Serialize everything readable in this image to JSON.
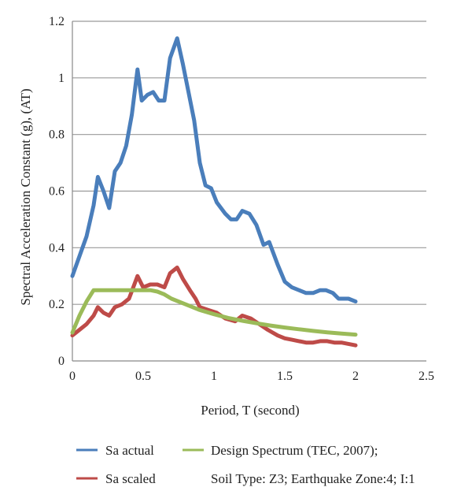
{
  "chart_data": {
    "type": "line",
    "title": "",
    "xlabel": "Period, T (second)",
    "ylabel": "Spectral Acceleration Constant (g), (AT)",
    "xlim": [
      0,
      2.5
    ],
    "ylim": [
      0,
      1.2
    ],
    "x_ticks": [
      "0",
      "0.5",
      "1",
      "1.5",
      "2",
      "2.5"
    ],
    "y_ticks": [
      "0",
      "0.2",
      "0.4",
      "0.6",
      "0.8",
      "1",
      "1.2"
    ],
    "grid": "horizontal",
    "legend_position": "bottom",
    "series": [
      {
        "name": "Sa actual",
        "color": "#4a7ebb",
        "points": [
          [
            0,
            0.3
          ],
          [
            0.05,
            0.37
          ],
          [
            0.1,
            0.44
          ],
          [
            0.15,
            0.55
          ],
          [
            0.18,
            0.65
          ],
          [
            0.22,
            0.6
          ],
          [
            0.26,
            0.54
          ],
          [
            0.3,
            0.67
          ],
          [
            0.34,
            0.7
          ],
          [
            0.38,
            0.76
          ],
          [
            0.42,
            0.87
          ],
          [
            0.46,
            1.03
          ],
          [
            0.49,
            0.92
          ],
          [
            0.53,
            0.94
          ],
          [
            0.57,
            0.95
          ],
          [
            0.61,
            0.92
          ],
          [
            0.65,
            0.92
          ],
          [
            0.69,
            1.07
          ],
          [
            0.74,
            1.14
          ],
          [
            0.78,
            1.05
          ],
          [
            0.82,
            0.95
          ],
          [
            0.86,
            0.85
          ],
          [
            0.9,
            0.7
          ],
          [
            0.94,
            0.62
          ],
          [
            0.98,
            0.61
          ],
          [
            1.02,
            0.56
          ],
          [
            1.08,
            0.52
          ],
          [
            1.12,
            0.5
          ],
          [
            1.16,
            0.5
          ],
          [
            1.2,
            0.53
          ],
          [
            1.25,
            0.52
          ],
          [
            1.3,
            0.48
          ],
          [
            1.35,
            0.41
          ],
          [
            1.39,
            0.42
          ],
          [
            1.45,
            0.34
          ],
          [
            1.5,
            0.28
          ],
          [
            1.55,
            0.26
          ],
          [
            1.6,
            0.25
          ],
          [
            1.65,
            0.24
          ],
          [
            1.7,
            0.24
          ],
          [
            1.75,
            0.25
          ],
          [
            1.79,
            0.25
          ],
          [
            1.84,
            0.24
          ],
          [
            1.88,
            0.22
          ],
          [
            1.95,
            0.22
          ],
          [
            2.0,
            0.21
          ]
        ]
      },
      {
        "name": "Sa scaled",
        "color": "#be4b48",
        "points": [
          [
            0,
            0.09
          ],
          [
            0.05,
            0.11
          ],
          [
            0.1,
            0.13
          ],
          [
            0.15,
            0.16
          ],
          [
            0.18,
            0.19
          ],
          [
            0.22,
            0.17
          ],
          [
            0.26,
            0.16
          ],
          [
            0.3,
            0.19
          ],
          [
            0.35,
            0.2
          ],
          [
            0.4,
            0.22
          ],
          [
            0.43,
            0.26
          ],
          [
            0.46,
            0.3
          ],
          [
            0.5,
            0.26
          ],
          [
            0.55,
            0.27
          ],
          [
            0.6,
            0.27
          ],
          [
            0.65,
            0.26
          ],
          [
            0.69,
            0.31
          ],
          [
            0.74,
            0.33
          ],
          [
            0.78,
            0.29
          ],
          [
            0.83,
            0.25
          ],
          [
            0.87,
            0.22
          ],
          [
            0.9,
            0.19
          ],
          [
            0.96,
            0.18
          ],
          [
            1.02,
            0.17
          ],
          [
            1.08,
            0.15
          ],
          [
            1.15,
            0.14
          ],
          [
            1.2,
            0.16
          ],
          [
            1.26,
            0.15
          ],
          [
            1.32,
            0.13
          ],
          [
            1.38,
            0.11
          ],
          [
            1.45,
            0.09
          ],
          [
            1.5,
            0.08
          ],
          [
            1.55,
            0.075
          ],
          [
            1.6,
            0.07
          ],
          [
            1.65,
            0.065
          ],
          [
            1.7,
            0.065
          ],
          [
            1.75,
            0.07
          ],
          [
            1.8,
            0.07
          ],
          [
            1.85,
            0.065
          ],
          [
            1.9,
            0.065
          ],
          [
            1.95,
            0.06
          ],
          [
            2.0,
            0.055
          ]
        ]
      },
      {
        "name": "Design Spectrum (TEC, 2007);",
        "name_line2": "Soil Type: Z3; Earthquake Zone:4; I:1",
        "color": "#9bbb59",
        "points": [
          [
            0,
            0.1
          ],
          [
            0.05,
            0.16
          ],
          [
            0.1,
            0.21
          ],
          [
            0.15,
            0.25
          ],
          [
            0.2,
            0.25
          ],
          [
            0.3,
            0.25
          ],
          [
            0.4,
            0.25
          ],
          [
            0.5,
            0.25
          ],
          [
            0.55,
            0.25
          ],
          [
            0.6,
            0.245
          ],
          [
            0.65,
            0.235
          ],
          [
            0.7,
            0.22
          ],
          [
            0.8,
            0.2
          ],
          [
            0.9,
            0.18
          ],
          [
            1.0,
            0.165
          ],
          [
            1.1,
            0.152
          ],
          [
            1.2,
            0.142
          ],
          [
            1.3,
            0.133
          ],
          [
            1.4,
            0.125
          ],
          [
            1.5,
            0.118
          ],
          [
            1.6,
            0.112
          ],
          [
            1.7,
            0.106
          ],
          [
            1.8,
            0.101
          ],
          [
            1.9,
            0.097
          ],
          [
            2.0,
            0.093
          ]
        ]
      }
    ]
  }
}
